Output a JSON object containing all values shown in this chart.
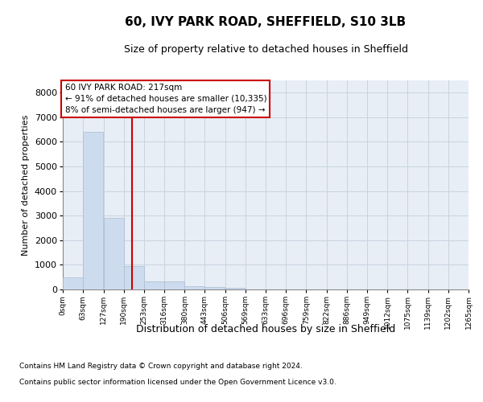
{
  "title": "60, IVY PARK ROAD, SHEFFIELD, S10 3LB",
  "subtitle": "Size of property relative to detached houses in Sheffield",
  "xlabel": "Distribution of detached houses by size in Sheffield",
  "ylabel": "Number of detached properties",
  "property_size": 217,
  "annotation_title": "60 IVY PARK ROAD: 217sqm",
  "annotation_line1": "← 91% of detached houses are smaller (10,335)",
  "annotation_line2": "8% of semi-detached houses are larger (947) →",
  "footer_line1": "Contains HM Land Registry data © Crown copyright and database right 2024.",
  "footer_line2": "Contains public sector information licensed under the Open Government Licence v3.0.",
  "bar_color": "#ccdcee",
  "bar_edge_color": "#aabbd0",
  "grid_color": "#c8d4e0",
  "annotation_box_edgecolor": "#cc0000",
  "vline_color": "#cc0000",
  "background_color": "#e8eef6",
  "bin_edges": [
    0,
    63,
    127,
    190,
    253,
    316,
    380,
    443,
    506,
    569,
    633,
    696,
    759,
    822,
    886,
    949,
    1012,
    1075,
    1139,
    1202,
    1265
  ],
  "bin_labels": [
    "0sqm",
    "63sqm",
    "127sqm",
    "190sqm",
    "253sqm",
    "316sqm",
    "380sqm",
    "443sqm",
    "506sqm",
    "569sqm",
    "633sqm",
    "696sqm",
    "759sqm",
    "822sqm",
    "886sqm",
    "949sqm",
    "1012sqm",
    "1075sqm",
    "1139sqm",
    "1202sqm",
    "1265sqm"
  ],
  "bar_heights": [
    480,
    6400,
    2900,
    950,
    340,
    320,
    130,
    110,
    50,
    0,
    0,
    0,
    0,
    0,
    0,
    0,
    0,
    0,
    0,
    0
  ],
  "ylim": [
    0,
    8500
  ],
  "yticks": [
    0,
    1000,
    2000,
    3000,
    4000,
    5000,
    6000,
    7000,
    8000
  ]
}
